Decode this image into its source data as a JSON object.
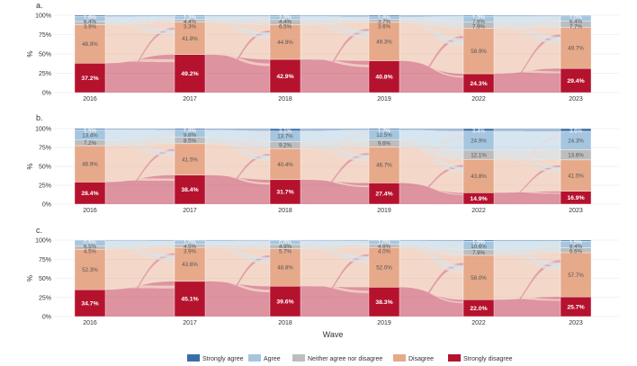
{
  "figure": {
    "x_label": "Wave",
    "y_label": "%",
    "categories": [
      "Strongly agree",
      "Agree",
      "Neither agree nor disagree",
      "Disagree",
      "Strongly disagree"
    ],
    "colors": {
      "Strongly agree": "#3b6ea8",
      "Agree": "#a5c6df",
      "Neither agree nor disagree": "#bdbdbd",
      "Disagree": "#e6a98a",
      "Strongly disagree": "#b5122e"
    }
  },
  "chart_data": [
    {
      "type": "alluvial",
      "panel": "a.",
      "waves": [
        "2016",
        "2017",
        "2018",
        "2019",
        "2022",
        "2023"
      ],
      "yticks": [
        "0%",
        "25%",
        "50%",
        "75%",
        "100%"
      ],
      "ylim": [
        0,
        100
      ],
      "series": [
        {
          "name": "Strongly agree",
          "values": [
            1.6,
            1.3,
            1.3,
            1.8,
            1.3,
            1.0
          ]
        },
        {
          "name": "Agree",
          "values": [
            6.4,
            4.4,
            4.4,
            3.7,
            7.6,
            6.4
          ]
        },
        {
          "name": "Neither agree nor disagree",
          "values": [
            3.9,
            3.3,
            6.5,
            3.6,
            7.9,
            7.7
          ]
        },
        {
          "name": "Disagree",
          "values": [
            48.9,
            41.8,
            44.9,
            49.3,
            58.9,
            49.7
          ]
        },
        {
          "name": "Strongly disagree",
          "values": [
            37.2,
            49.2,
            42.9,
            40.8,
            24.3,
            29.4
          ]
        }
      ],
      "labels": [
        [
          "1.6%",
          "6.4%",
          "3.9%",
          "48.9%",
          "37.2%"
        ],
        [
          "1.3%",
          "4.4%",
          "3.3%",
          "41.8%",
          "49.2%"
        ],
        [
          "1.3%",
          "4.4%",
          "6.5%",
          "44.9%",
          "42.9%"
        ],
        [
          "1.8%",
          "3.7%",
          "3.6%",
          "49.3%",
          "40.8%"
        ],
        [
          "1.3%",
          "7.6%",
          "7.9%",
          "58.9%",
          "24.3%"
        ],
        [
          "1.0%",
          "6.4%",
          "7.7%",
          "49.7%",
          "29.4%"
        ]
      ]
    },
    {
      "type": "alluvial",
      "panel": "b.",
      "waves": [
        "2016",
        "2017",
        "2018",
        "2019",
        "2022",
        "2023"
      ],
      "yticks": [
        "0%",
        "25%",
        "50%",
        "75%",
        "100%"
      ],
      "ylim": [
        0,
        100
      ],
      "series": [
        {
          "name": "Strongly agree",
          "values": [
            1.5,
            1.8,
            3.1,
            1.7,
            3.4,
            3.6
          ]
        },
        {
          "name": "Agree",
          "values": [
            13.4,
            9.8,
            13.7,
            12.5,
            24.9,
            24.3
          ]
        },
        {
          "name": "Neither agree nor disagree",
          "values": [
            7.2,
            8.5,
            9.2,
            9.6,
            12.1,
            13.6
          ]
        },
        {
          "name": "Disagree",
          "values": [
            46.9,
            41.5,
            40.4,
            46.7,
            43.8,
            41.5
          ]
        },
        {
          "name": "Strongly disagree",
          "values": [
            28.4,
            38.4,
            31.7,
            27.4,
            14.9,
            16.9
          ]
        }
      ],
      "labels": [
        [
          "1.5%",
          "13.4%",
          "7.2%",
          "46.9%",
          "28.4%"
        ],
        [
          "1.8%",
          "9.8%",
          "8.5%",
          "41.5%",
          "38.4%"
        ],
        [
          "3.1%",
          "13.7%",
          "9.2%",
          "40.4%",
          "31.7%"
        ],
        [
          "1.7%",
          "12.5%",
          "9.6%",
          "46.7%",
          "27.4%"
        ],
        [
          "3.4%",
          "24.9%",
          "12.1%",
          "43.8%",
          "14.9%"
        ],
        [
          "3.6%",
          "24.3%",
          "13.6%",
          "41.5%",
          "16.9%"
        ]
      ]
    },
    {
      "type": "alluvial",
      "panel": "c.",
      "waves": [
        "2016",
        "2017",
        "2018",
        "2019",
        "2022",
        "2023"
      ],
      "yticks": [
        "0%",
        "25%",
        "50%",
        "75%",
        "100%"
      ],
      "ylim": [
        0,
        100
      ],
      "series": [
        {
          "name": "Strongly agree",
          "values": [
            0.9,
            1.0,
            0.9,
            1.0,
            1.5,
            1.5
          ]
        },
        {
          "name": "Agree",
          "values": [
            6.5,
            4.5,
            4.9,
            4.6,
            10.6,
            8.4
          ]
        },
        {
          "name": "Neither agree nor disagree",
          "values": [
            4.5,
            3.9,
            5.7,
            4.0,
            7.9,
            6.6
          ]
        },
        {
          "name": "Disagree",
          "values": [
            52.3,
            43.6,
            48.8,
            52.0,
            58.0,
            57.7
          ]
        },
        {
          "name": "Strongly disagree",
          "values": [
            34.7,
            45.1,
            39.6,
            38.3,
            22.0,
            25.7
          ]
        }
      ],
      "labels": [
        [
          "0.9%",
          "6.5%",
          "4.5%",
          "52.3%",
          "34.7%"
        ],
        [
          "1.0%",
          "4.5%",
          "3.9%",
          "43.6%",
          "45.1%"
        ],
        [
          "0.9%",
          "4.9%",
          "5.7%",
          "48.8%",
          "39.6%"
        ],
        [
          "1.0%",
          "4.6%",
          "4.0%",
          "52.0%",
          "38.3%"
        ],
        [
          "1.5%",
          "10.6%",
          "7.9%",
          "58.0%",
          "22.0%"
        ],
        [
          "1.5%",
          "8.4%",
          "6.6%",
          "57.7%",
          "25.7%"
        ]
      ]
    }
  ]
}
